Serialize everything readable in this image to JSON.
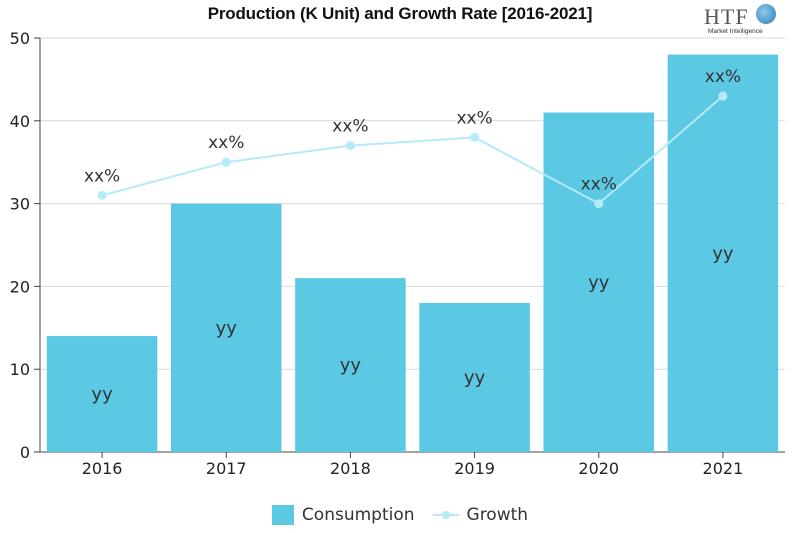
{
  "title": "Production (K Unit) and Growth Rate [2016-2021]",
  "logo": {
    "text": "HTF",
    "subtext": "Market Intelligence"
  },
  "legend": {
    "consumption": "Consumption",
    "growth": "Growth"
  },
  "colors": {
    "bar": "#5bc8e4",
    "line": "#b5eaf8",
    "bar_label": "#333333",
    "line_label": "#333333"
  },
  "chart_data": {
    "type": "bar",
    "title": "Production (K Unit) and Growth Rate [2016-2021]",
    "categories": [
      "2016",
      "2017",
      "2018",
      "2019",
      "2020",
      "2021"
    ],
    "ylim": [
      0,
      50
    ],
    "yticks": [
      0,
      10,
      20,
      30,
      40,
      50
    ],
    "grid": "horizontal",
    "legend_position": "bottom",
    "series": [
      {
        "name": "Consumption",
        "type": "bar",
        "values": [
          14,
          30,
          21,
          18,
          41,
          48
        ],
        "labels": [
          "yy",
          "yy",
          "yy",
          "yy",
          "yy",
          "yy"
        ]
      },
      {
        "name": "Growth",
        "type": "line",
        "values": [
          31,
          35,
          37,
          38,
          30,
          43
        ],
        "labels": [
          "xx%",
          "xx%",
          "xx%",
          "xx%",
          "xx%",
          "xx%"
        ]
      }
    ]
  }
}
